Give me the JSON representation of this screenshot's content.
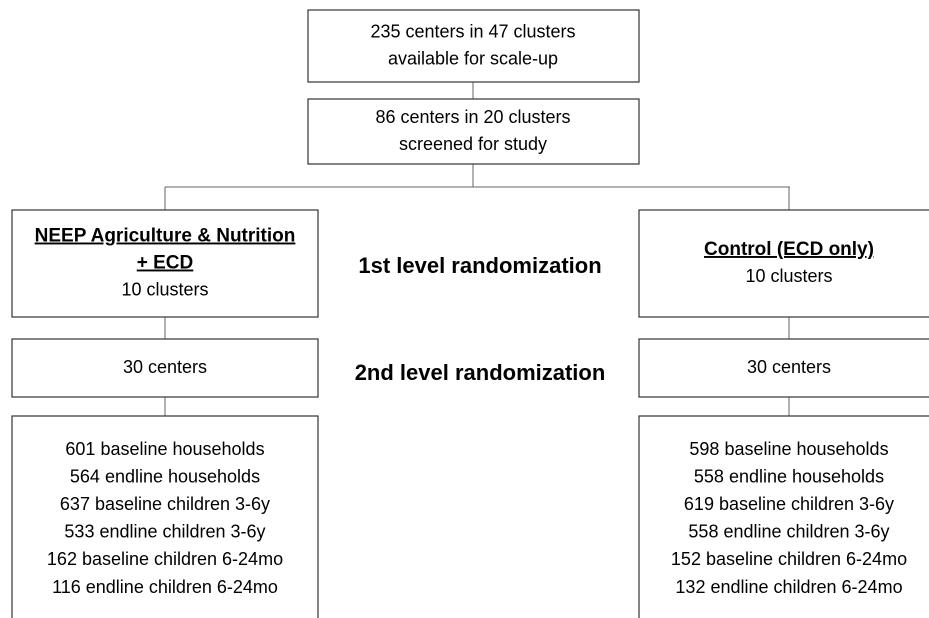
{
  "top": {
    "lines": [
      "235 centers in 47 clusters",
      "available for scale-up"
    ]
  },
  "screened": {
    "lines": [
      "86 centers in 20 clusters",
      "screened for study"
    ]
  },
  "randomization": [
    "1st level randomization",
    "2nd level randomization"
  ],
  "arms": [
    {
      "heading": [
        "NEEP Agriculture & Nutrition",
        "+ ECD"
      ],
      "clusters": "10 clusters",
      "centers": "30 centers",
      "counts": [
        "601 baseline households",
        "564 endline households",
        "637 baseline children 3-6y",
        "533 endline children 3-6y",
        "162 baseline children 6-24mo",
        "116 endline children 6-24mo"
      ]
    },
    {
      "heading": [
        "Control (ECD only)"
      ],
      "clusters": "10 clusters",
      "centers": "30 centers",
      "counts": [
        "598 baseline households",
        "558 endline households",
        "619 baseline children 3-6y",
        "558 endline children 3-6y",
        "152 baseline children 6-24mo",
        "132 endline children 6-24mo"
      ]
    }
  ]
}
